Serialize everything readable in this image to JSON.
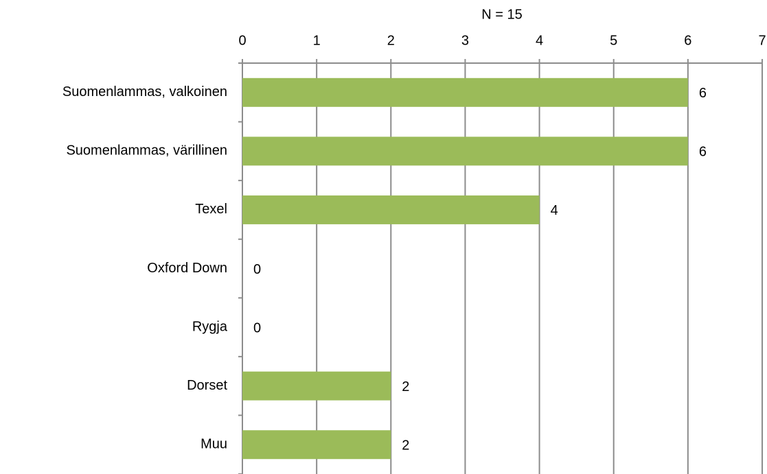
{
  "chart_data": {
    "type": "bar",
    "orientation": "horizontal",
    "xlabel": "N = 15",
    "categories": [
      "Suomenlammas, valkoinen",
      "Suomenlammas, värillinen",
      "Texel",
      "Oxford Down",
      "Rygja",
      "Dorset",
      "Muu"
    ],
    "values": [
      6,
      6,
      4,
      0,
      0,
      2,
      2
    ],
    "color": "#9bbb59",
    "xlim": [
      0,
      7
    ],
    "xticks": [
      0,
      1,
      2,
      3,
      4,
      5,
      6,
      7
    ],
    "grid": true
  }
}
